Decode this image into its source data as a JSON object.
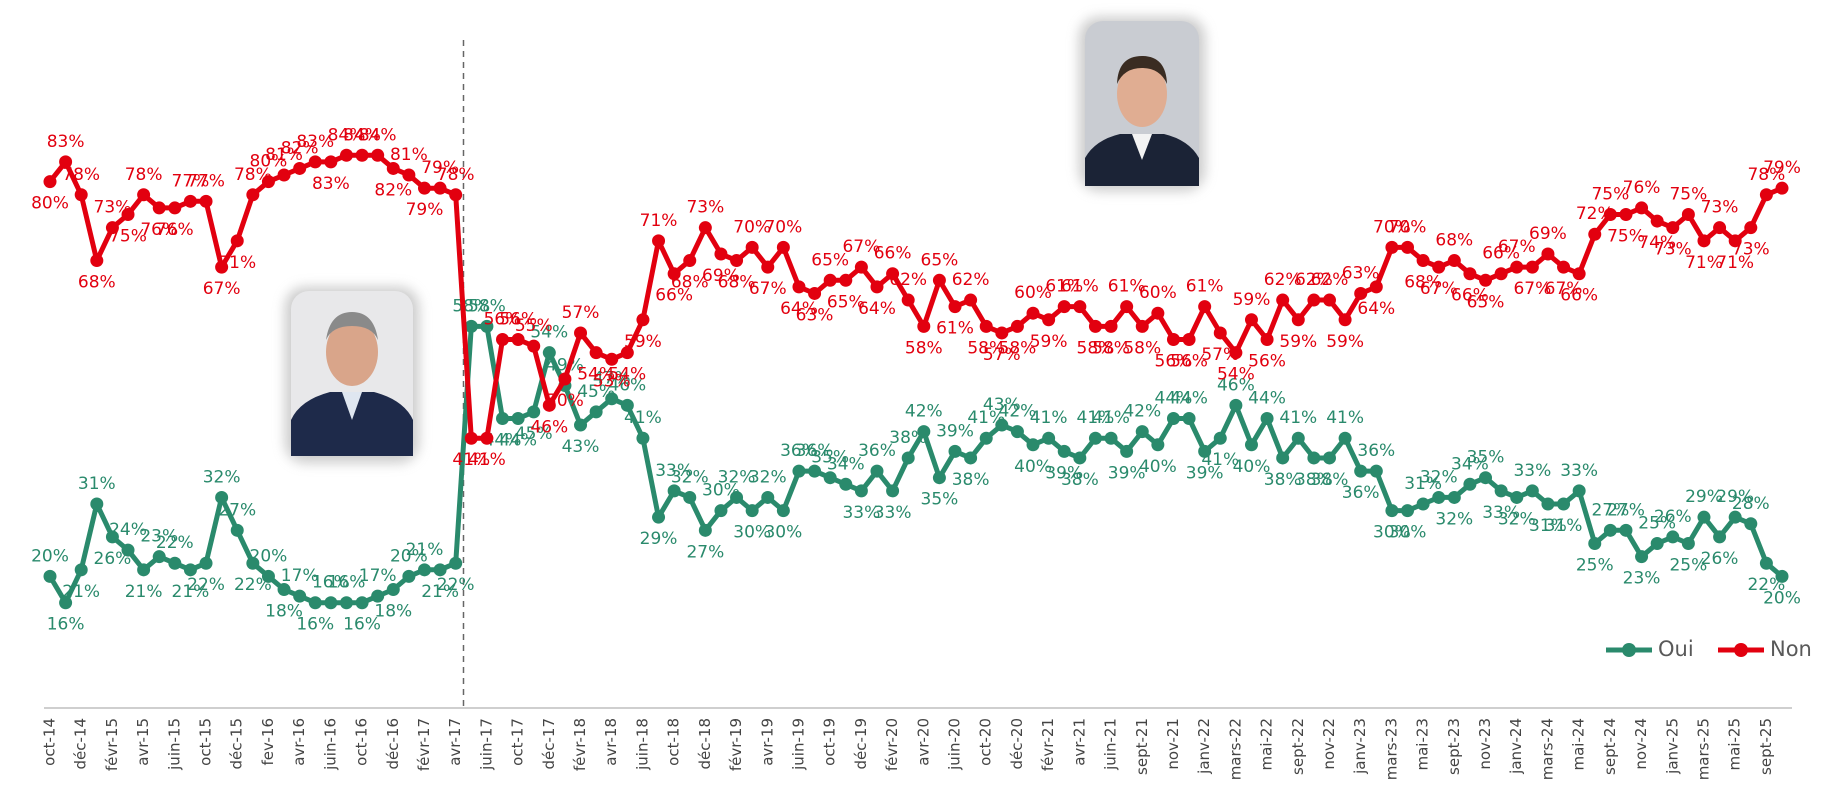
{
  "chart_data": {
    "type": "line",
    "categories": [
      "oct-14",
      null,
      "déc-14",
      null,
      "févr-15",
      null,
      "avr-15",
      null,
      "juin-15",
      null,
      "oct-15",
      null,
      "déc-15",
      null,
      "fev-16",
      null,
      "avr-16",
      null,
      "juin-16",
      null,
      "oct-16",
      null,
      "déc-16",
      null,
      "févr-17",
      null,
      "avr-17",
      null,
      "juin-17",
      null,
      "oct-17",
      null,
      "déc-17",
      null,
      "févr-18",
      null,
      "avr-18",
      null,
      "juin-18",
      null,
      "oct-18",
      null,
      "déc-18",
      null,
      "févr-19",
      null,
      "avr-19",
      null,
      "juin-19",
      null,
      "oct-19",
      null,
      "déc-19",
      null,
      "févr-20",
      null,
      "avr-20",
      null,
      "juin-20",
      null,
      "oct-20",
      null,
      "déc-20",
      null,
      "févr-21",
      null,
      "avr-21",
      null,
      "juin-21",
      null,
      "sept-21",
      null,
      "nov-21",
      null,
      "janv-22",
      null,
      "mars-22",
      null,
      "mai-22",
      null,
      "sept-22",
      null,
      "nov-22",
      null,
      "janv-23",
      null,
      "mars-23",
      null,
      "mai-23",
      null,
      "sept-23",
      null,
      "nov-23",
      null,
      "janv-24",
      null,
      "mars-24",
      null,
      "mai-24",
      null,
      "sept-24",
      null,
      "nov-24",
      null,
      "janv-25",
      null,
      "mars-25",
      null,
      "mai-25",
      null,
      "sept-25",
      null
    ],
    "series": [
      {
        "name": "Oui",
        "color": "#2a8a6c",
        "values": [
          20,
          16,
          21,
          31,
          26,
          24,
          21,
          23,
          22,
          21,
          22,
          32,
          27,
          22,
          20,
          18,
          17,
          16,
          16,
          16,
          16,
          17,
          18,
          20,
          21,
          21,
          22,
          58,
          58,
          44,
          44,
          45,
          54,
          49,
          43,
          45,
          47,
          46,
          41,
          29,
          33,
          32,
          27,
          30,
          32,
          30,
          32,
          30,
          36,
          36,
          35,
          34,
          33,
          36,
          33,
          38,
          42,
          35,
          39,
          38,
          41,
          43,
          42,
          40,
          41,
          39,
          38,
          41,
          41,
          39,
          42,
          40,
          44,
          44,
          39,
          41,
          46,
          40,
          44,
          38,
          41,
          38,
          38,
          41,
          36,
          36,
          30,
          30,
          31,
          32,
          32,
          34,
          35,
          33,
          32,
          33,
          31,
          31,
          33,
          25,
          27,
          27,
          23,
          25,
          26,
          25,
          29,
          26,
          29,
          28,
          22,
          20
        ],
        "value_labels": [
          "20%",
          "16%",
          "21%",
          "31%",
          "26%",
          "24%",
          "21%",
          "23%",
          "22%",
          "21%",
          "22%",
          "32%",
          "27%",
          "22%",
          "20%",
          "18%",
          "17%",
          "16%",
          "16%",
          "16%",
          "16%",
          "17%",
          "18%",
          "20%",
          "21%",
          "21%",
          "22%",
          "58%",
          "58%",
          "44%",
          "44%",
          "45%",
          "54%",
          "49%",
          "43%",
          "45%",
          "47%",
          "46%",
          "41%",
          "29%",
          "33%",
          "32%",
          "27%",
          "30%",
          "32%",
          "30%",
          "32%",
          "30%",
          "36%",
          "36%",
          "35%",
          "34%",
          "33%",
          "36%",
          "33%",
          "38%",
          "42%",
          "35%",
          "39%",
          "38%",
          "41%",
          "43%",
          "42%",
          "40%",
          "41%",
          "39%",
          "38%",
          "41%",
          "41%",
          "39%",
          "42%",
          "40%",
          "44%",
          "44%",
          "39%",
          "41%",
          "46%",
          "40%",
          "44%",
          "38%",
          "41%",
          "38%",
          "38%",
          "41%",
          "36%",
          "36%",
          "30%",
          "30%",
          "31%",
          "32%",
          "32%",
          "34%",
          "35%",
          "33%",
          "32%",
          "33%",
          "31%",
          "31%",
          "33%",
          "25%",
          "27%",
          "27%",
          "23%",
          "25%",
          "26%",
          "25%",
          "29%",
          "26%",
          "29%",
          "28%",
          "22%",
          "20%"
        ]
      },
      {
        "name": "Non",
        "color": "#e2000f",
        "values": [
          80,
          83,
          78,
          68,
          73,
          75,
          78,
          76,
          76,
          77,
          77,
          67,
          71,
          78,
          80,
          81,
          82,
          83,
          83,
          84,
          84,
          84,
          82,
          81,
          79,
          79,
          78,
          41,
          41,
          56,
          56,
          55,
          46,
          50,
          57,
          54,
          53,
          54,
          59,
          71,
          66,
          68,
          73,
          69,
          68,
          70,
          67,
          70,
          64,
          63,
          65,
          65,
          67,
          64,
          66,
          62,
          58,
          65,
          61,
          62,
          58,
          57,
          58,
          60,
          59,
          61,
          61,
          58,
          58,
          61,
          58,
          60,
          56,
          56,
          61,
          57,
          54,
          59,
          56,
          62,
          59,
          62,
          62,
          59,
          63,
          64,
          70,
          70,
          68,
          67,
          68,
          66,
          65,
          66,
          67,
          67,
          69,
          67,
          66,
          72,
          75,
          75,
          76,
          74,
          73,
          75,
          71,
          73,
          71,
          73,
          78,
          79
        ],
        "value_labels": [
          "80%",
          "83%",
          "78%",
          "68%",
          "73%",
          "75%",
          "78%",
          "76%",
          "76%",
          "77%",
          "77%",
          "67%",
          "71%",
          "78%",
          "80%",
          "81%",
          "82%",
          "83%",
          "83%",
          "84%",
          "84%",
          "84%",
          "82%",
          "81%",
          "79%",
          "79%",
          "78%",
          "41%",
          "41%",
          "56%",
          "56%",
          "55%",
          "46%",
          "50%",
          "57%",
          "54%",
          "53%",
          "54%",
          "59%",
          "71%",
          "66%",
          "68%",
          "73%",
          "69%",
          "68%",
          "70%",
          "67%",
          "70%",
          "64%",
          "63%",
          "65%",
          "65%",
          "67%",
          "64%",
          "66%",
          "62%",
          "58%",
          "65%",
          "61%",
          "62%",
          "58%",
          "57%",
          "58%",
          "60%",
          "59%",
          "61%",
          "61%",
          "58%",
          "58%",
          "61%",
          "58%",
          "60%",
          "56%",
          "56%",
          "61%",
          "57%",
          "54%",
          "59%",
          "56%",
          "62%",
          "59%",
          "62%",
          "62%",
          "59%",
          "63%",
          "64%",
          "70%",
          "70%",
          "68%",
          "67%",
          "68%",
          "66%",
          "65%",
          "66%",
          "67%",
          "67%",
          "69%",
          "67%",
          "66%",
          "72%",
          "75%",
          "75%",
          "76%",
          "74%",
          "73%",
          "75%",
          "71%",
          "73%",
          "71%",
          "73%",
          "78%",
          "79%"
        ]
      }
    ],
    "ylim": [
      0,
      100
    ],
    "legend": "bottom-right"
  }
}
